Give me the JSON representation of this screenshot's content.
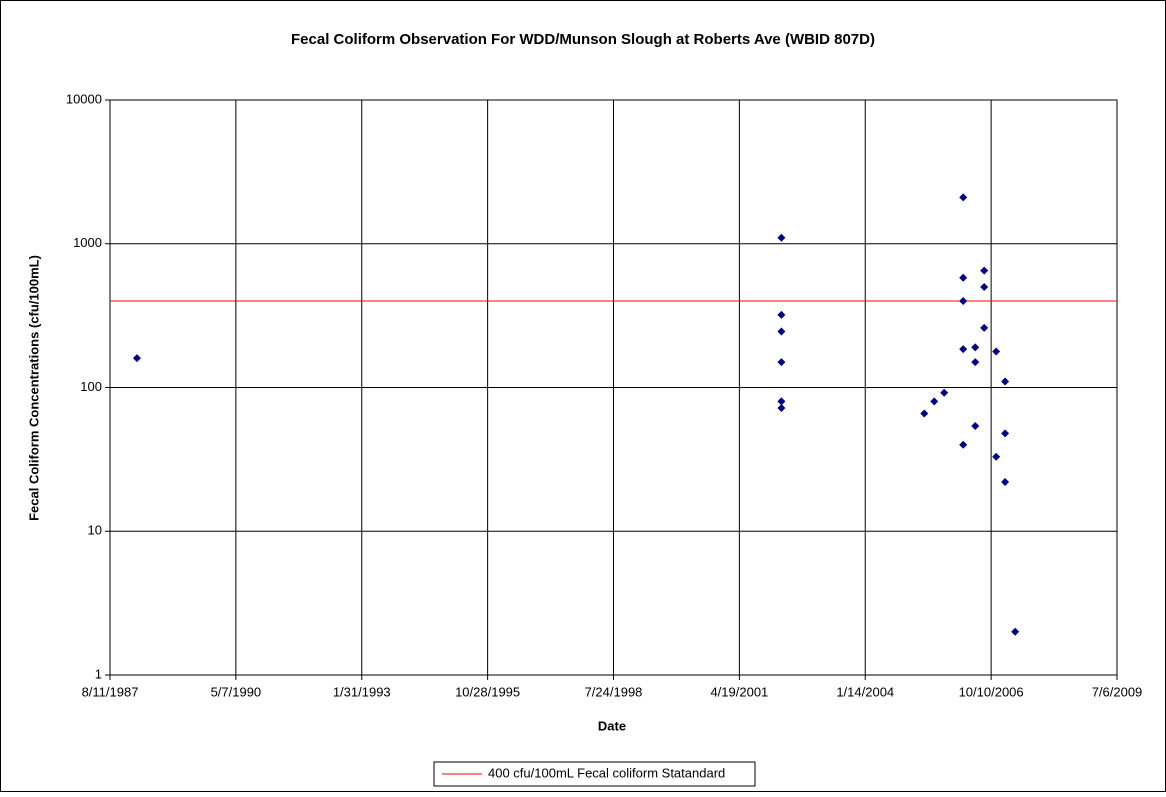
{
  "chart_data": {
    "type": "scatter",
    "title": "Fecal Coliform  Observation For WDD/Munson Slough at Roberts Ave (WBID 807D)",
    "x_label": "Date",
    "y_label": "Fecal Coliform Concentrations (cfu/100mL)",
    "x": [
      "1988-03-12",
      "2002-03-19",
      "2002-03-19",
      "2002-03-19",
      "2002-03-19",
      "2002-03-19",
      "2002-03-19",
      "2005-04-27",
      "2005-07-15",
      "2005-10-02",
      "2006-03-02",
      "2006-03-02",
      "2006-03-02",
      "2006-03-02",
      "2006-03-02",
      "2006-06-06",
      "2006-06-06",
      "2006-06-06",
      "2006-08-16",
      "2006-08-16",
      "2006-08-16",
      "2006-11-19",
      "2006-11-19",
      "2007-01-29",
      "2007-01-29",
      "2007-01-29",
      "2007-04-19"
    ],
    "values": [
      160,
      1100,
      320,
      245,
      150,
      80,
      72,
      66,
      80,
      92,
      2100,
      580,
      400,
      185,
      40,
      190,
      150,
      54,
      650,
      500,
      260,
      178,
      33,
      110,
      48,
      22,
      2
    ],
    "color": "#000080",
    "xlim": [
      "1987-08-11",
      "2009-07-06"
    ],
    "xticks": [
      {
        "value": "1987-08-11",
        "label": "8/11/1987"
      },
      {
        "value": "1990-05-07",
        "label": "5/7/1990"
      },
      {
        "value": "1993-01-31",
        "label": "1/31/1993"
      },
      {
        "value": "1995-10-28",
        "label": "10/28/1995"
      },
      {
        "value": "1998-07-24",
        "label": "7/24/1998"
      },
      {
        "value": "2001-04-19",
        "label": "4/19/2001"
      },
      {
        "value": "2004-01-14",
        "label": "1/14/2004"
      },
      {
        "value": "2006-10-10",
        "label": "10/10/2006"
      },
      {
        "value": "2009-07-06",
        "label": "7/6/2009"
      }
    ],
    "ylim": [
      1,
      10000
    ],
    "yticks": [
      1,
      10,
      100,
      1000,
      10000
    ],
    "y_scale": "log",
    "grid": true,
    "reference_line": {
      "value": 400,
      "label": "400 cfu/100mL Fecal coliform Statandard",
      "color": "#ff0000"
    },
    "legend": "bottom"
  }
}
